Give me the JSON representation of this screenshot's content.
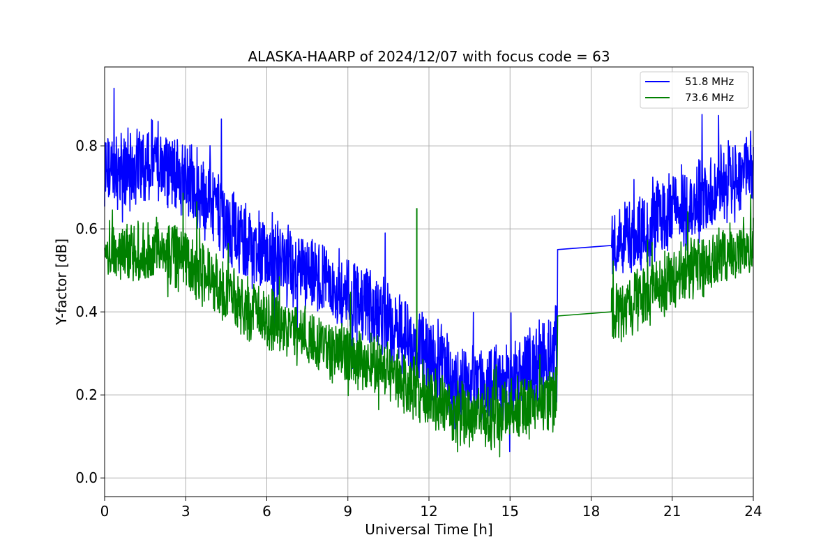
{
  "chart_data": {
    "type": "line",
    "title": "ALASKA-HAARP of 2024/12/07 with focus code = 63",
    "xlabel": "Universal Time [h]",
    "ylabel": "Y-factor [dB]",
    "xlim": [
      0,
      24
    ],
    "ylim": [
      -0.045,
      0.99
    ],
    "xticks": [
      "0",
      "3",
      "6",
      "9",
      "12",
      "15",
      "18",
      "21",
      "24"
    ],
    "xtick_values": [
      0,
      3,
      6,
      9,
      12,
      15,
      18,
      21,
      24
    ],
    "yticks": [
      "0.0",
      "0.2",
      "0.4",
      "0.6",
      "0.8"
    ],
    "ytick_values": [
      0.0,
      0.2,
      0.4,
      0.6,
      0.8
    ],
    "grid": true,
    "legend_position": "top-right",
    "series": [
      {
        "name": "51.8 MHz",
        "color": "#0000ff",
        "x": [
          0,
          0.5,
          1,
          1.5,
          2,
          2.5,
          3,
          3.5,
          4,
          4.5,
          5,
          5.5,
          6,
          6.5,
          7,
          7.5,
          8,
          8.5,
          9,
          9.5,
          10,
          10.5,
          11,
          11.5,
          12,
          12.5,
          13,
          13.5,
          14,
          14.5,
          15,
          15.5,
          16,
          16.5,
          16.75,
          18.75,
          19,
          19.5,
          20,
          20.5,
          21,
          21.5,
          22,
          22.5,
          23,
          23.5,
          24
        ],
        "y": [
          0.74,
          0.73,
          0.75,
          0.76,
          0.76,
          0.74,
          0.72,
          0.69,
          0.66,
          0.62,
          0.58,
          0.55,
          0.53,
          0.52,
          0.5,
          0.49,
          0.47,
          0.45,
          0.43,
          0.42,
          0.4,
          0.38,
          0.35,
          0.32,
          0.29,
          0.26,
          0.22,
          0.22,
          0.22,
          0.22,
          0.23,
          0.25,
          0.28,
          0.31,
          0.33,
          0.56,
          0.56,
          0.58,
          0.6,
          0.62,
          0.64,
          0.65,
          0.67,
          0.69,
          0.71,
          0.73,
          0.75
        ]
      },
      {
        "name": "73.6 MHz",
        "color": "#008000",
        "x": [
          0,
          0.5,
          1,
          1.5,
          2,
          2.5,
          3,
          3.5,
          4,
          4.5,
          5,
          5.5,
          6,
          6.5,
          7,
          7.5,
          8,
          8.5,
          9,
          9.5,
          10,
          10.5,
          11,
          11.5,
          12,
          12.5,
          13,
          13.5,
          14,
          14.5,
          15,
          15.5,
          16,
          16.5,
          16.75,
          18.75,
          19,
          19.5,
          20,
          20.5,
          21,
          21.5,
          22,
          22.5,
          23,
          23.5,
          24
        ],
        "y": [
          0.54,
          0.53,
          0.54,
          0.55,
          0.55,
          0.54,
          0.52,
          0.5,
          0.47,
          0.44,
          0.42,
          0.4,
          0.38,
          0.37,
          0.35,
          0.34,
          0.32,
          0.31,
          0.29,
          0.28,
          0.27,
          0.25,
          0.23,
          0.22,
          0.2,
          0.18,
          0.16,
          0.15,
          0.15,
          0.15,
          0.16,
          0.17,
          0.18,
          0.2,
          0.21,
          0.4,
          0.4,
          0.42,
          0.44,
          0.46,
          0.48,
          0.49,
          0.51,
          0.52,
          0.54,
          0.55,
          0.56
        ]
      }
    ],
    "annotations": [
      {
        "series": "73.6 MHz",
        "x": 11.55,
        "y": 0.65,
        "note": "spike"
      }
    ]
  }
}
